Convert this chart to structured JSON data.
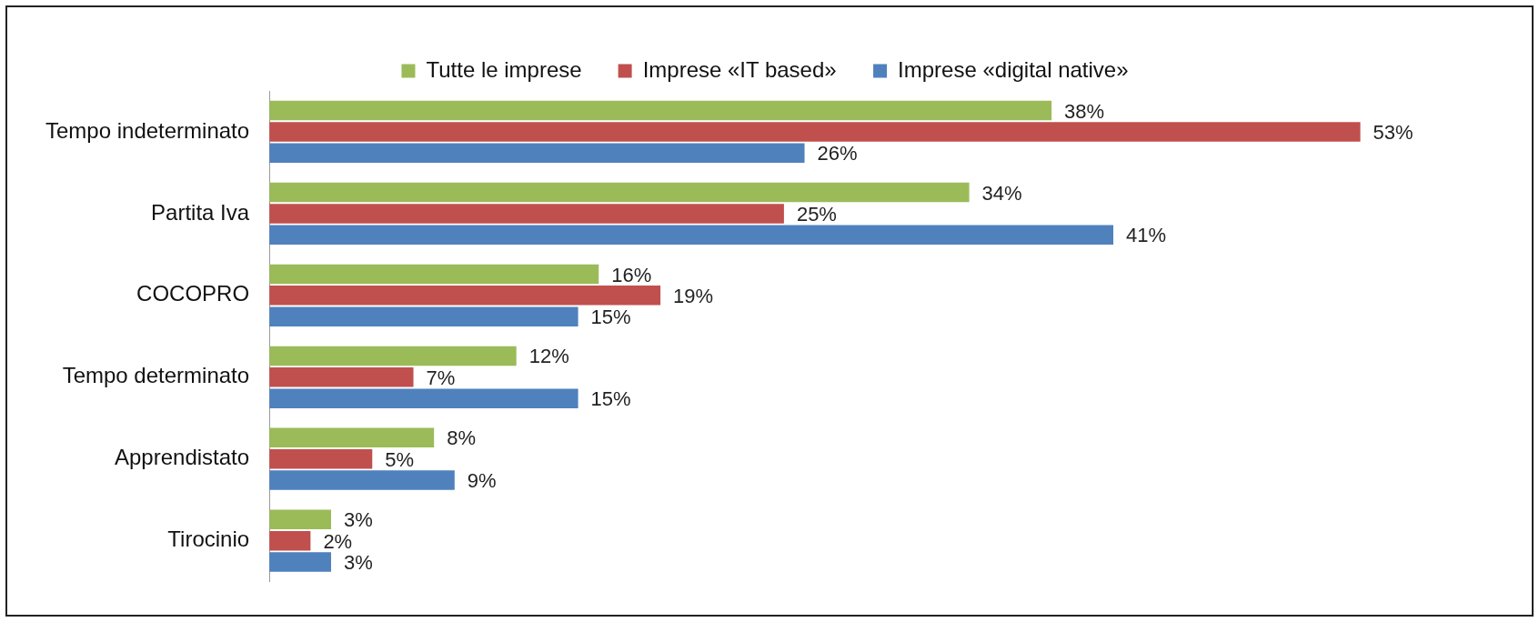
{
  "chart_data": {
    "type": "bar",
    "orientation": "horizontal",
    "legend": "top",
    "categories": [
      "Tempo indeterminato",
      "Partita Iva",
      "COCOPRO",
      "Tempo determinato",
      "Apprendistato",
      "Tirocinio"
    ],
    "series": [
      {
        "name": "Tutte le imprese",
        "color": "#9bbb59",
        "values": [
          38,
          34,
          16,
          12,
          8,
          3
        ],
        "value_labels": [
          "38%",
          "34%",
          "16%",
          "12%",
          "8%",
          "3%"
        ]
      },
      {
        "name": "Imprese «IT based»",
        "color": "#c0504d",
        "values": [
          53,
          25,
          19,
          7,
          5,
          2
        ],
        "value_labels": [
          "53%",
          "25%",
          "19%",
          "7%",
          "5%",
          "2%"
        ]
      },
      {
        "name": "Imprese «digital native»",
        "color": "#4f81bd",
        "values": [
          26,
          41,
          15,
          15,
          9,
          3
        ],
        "value_labels": [
          "26%",
          "41%",
          "15%",
          "15%",
          "9%",
          "3%"
        ]
      }
    ]
  }
}
